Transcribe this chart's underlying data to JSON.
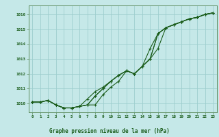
{
  "title": "Graphe pression niveau de la mer (hPa)",
  "x_labels": [
    "0",
    "1",
    "2",
    "3",
    "4",
    "5",
    "6",
    "7",
    "8",
    "9",
    "10",
    "11",
    "12",
    "13",
    "14",
    "15",
    "16",
    "17",
    "18",
    "19",
    "20",
    "21",
    "22",
    "23"
  ],
  "ylim": [
    1009.4,
    1016.6
  ],
  "xlim": [
    -0.5,
    23.5
  ],
  "yticks": [
    1010,
    1011,
    1012,
    1013,
    1014,
    1015,
    1016
  ],
  "background_color": "#c5e8e8",
  "grid_color": "#9ecece",
  "line_color": "#1a5c1a",
  "title_color": "#1a5c1a",
  "axes_color": "#5a8a5a",
  "series1": [
    1010.1,
    1010.1,
    1010.2,
    1009.9,
    1009.7,
    1009.7,
    1009.8,
    1009.9,
    1009.9,
    1010.6,
    1011.1,
    1011.5,
    1012.2,
    1012.0,
    1012.5,
    1013.7,
    1014.7,
    1015.1,
    1015.3,
    1015.5,
    1015.7,
    1015.8,
    1016.0,
    1016.1
  ],
  "series2": [
    1010.1,
    1010.1,
    1010.2,
    1009.9,
    1009.7,
    1009.7,
    1009.8,
    1009.9,
    1010.5,
    1011.0,
    1011.5,
    1011.9,
    1012.2,
    1012.0,
    1012.5,
    1013.0,
    1013.7,
    1015.1,
    1015.3,
    1015.5,
    1015.7,
    1015.8,
    1016.0,
    1016.1
  ],
  "series3": [
    1010.1,
    1010.1,
    1010.2,
    1009.9,
    1009.7,
    1009.7,
    1009.8,
    1009.9,
    1010.5,
    1011.0,
    1011.5,
    1011.9,
    1012.2,
    1012.0,
    1012.5,
    1013.0,
    1014.7,
    1015.1,
    1015.3,
    1015.5,
    1015.7,
    1015.8,
    1016.0,
    1016.1
  ],
  "series4": [
    1010.1,
    1010.1,
    1010.2,
    1009.9,
    1009.7,
    1009.7,
    1009.8,
    1010.3,
    1010.8,
    1011.1,
    1011.5,
    1011.9,
    1012.2,
    1012.0,
    1012.5,
    1013.0,
    1014.7,
    1015.1,
    1015.3,
    1015.5,
    1015.7,
    1015.8,
    1016.0,
    1016.1
  ]
}
